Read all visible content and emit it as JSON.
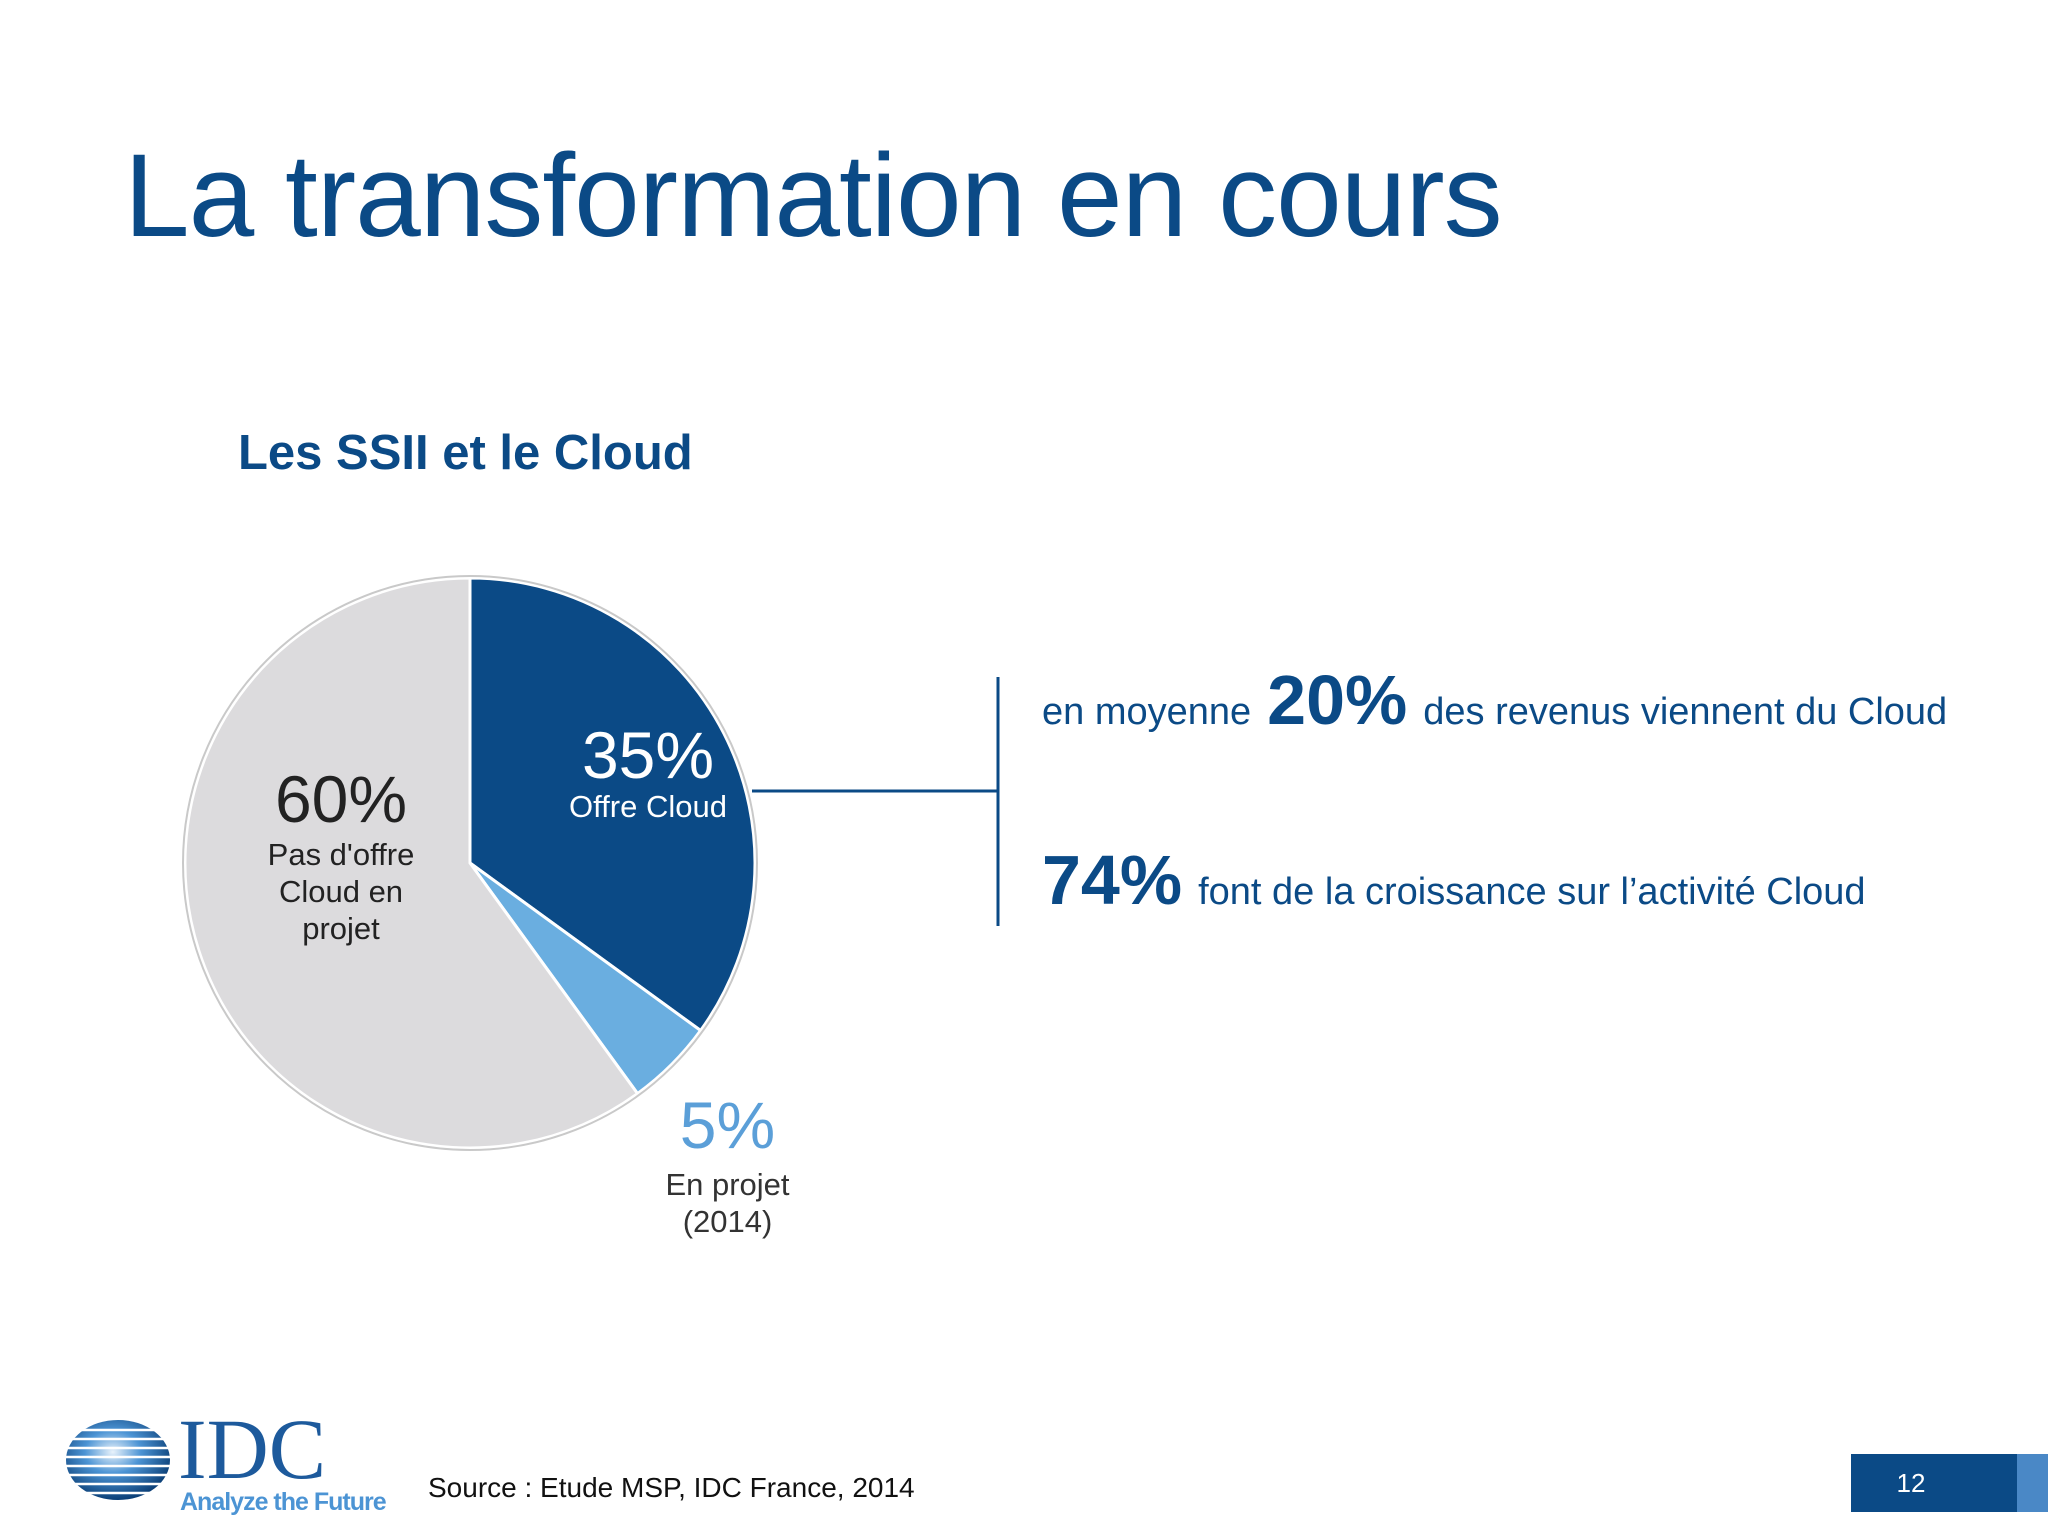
{
  "slide": {
    "title": "La transformation en cours",
    "source": "Source : Etude MSP, IDC France, 2014",
    "page_number": "12"
  },
  "logo": {
    "name": "IDC",
    "tagline": "Analyze the Future"
  },
  "chart_data": {
    "type": "pie",
    "title": "Les SSII et le Cloud",
    "slices": [
      {
        "label_pct": "35%",
        "label": "Offre Cloud",
        "value": 35,
        "color": "#0b4a86"
      },
      {
        "label_pct": "5%",
        "label": "En projet (2014)",
        "value": 5,
        "color": "#6aaee0"
      },
      {
        "label_pct": "60%",
        "label": "Pas d'offre Cloud en projet",
        "value": 60,
        "color": "#dcdbdd"
      }
    ]
  },
  "stats": {
    "line1": {
      "prefix": "en moyenne",
      "value": "20%",
      "suffix": "des revenus viennent du Cloud"
    },
    "line2": {
      "value": "74%",
      "suffix": "font de la croissance sur l’activité Cloud"
    }
  },
  "colors": {
    "brand_dark": "#0b4a86",
    "brand_light": "#6aaee0",
    "neutral": "#dcdbdd"
  }
}
